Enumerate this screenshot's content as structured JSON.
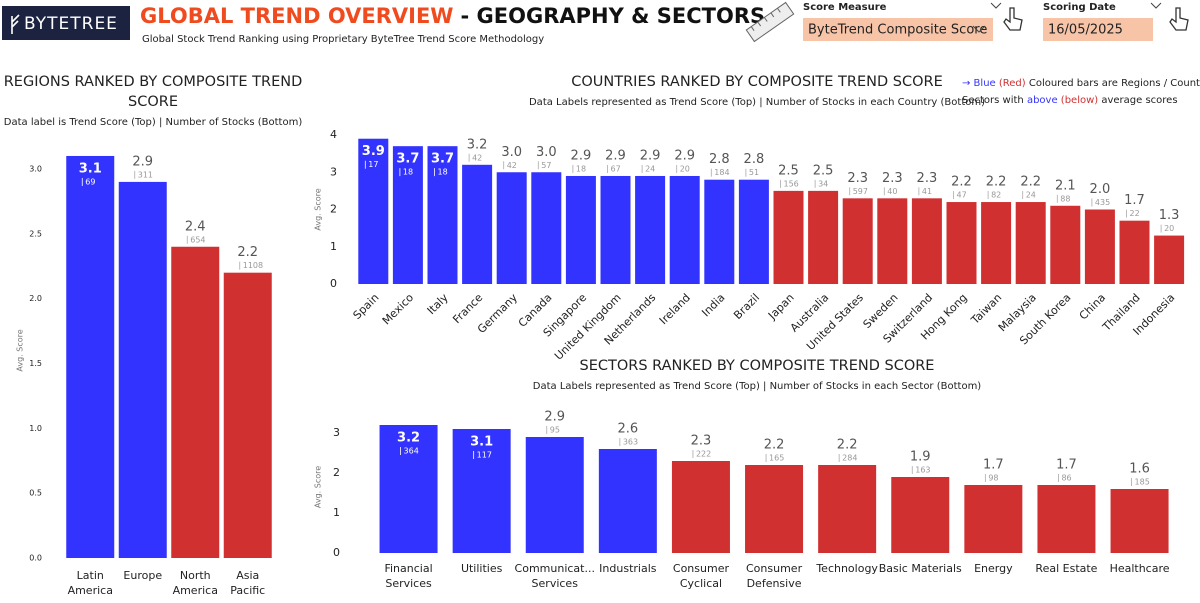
{
  "header": {
    "logo": "BYTETREE",
    "title": "GLOBAL TREND OVERVIEW",
    "title_suffix": "- GEOGRAPHY & SECTORS",
    "subtitle": "Global Stock Trend Ranking using Proprietary ByteTree Trend Score Methodology",
    "slicers": [
      {
        "label": "Score Measure",
        "value": "ByteTrend Composite Score"
      },
      {
        "label": "Scoring Date",
        "value": "16/05/2025"
      }
    ],
    "legend_note": [
      [
        {
          "text": "→ Blue",
          "color": "#3333ff"
        },
        {
          "text": " (Red)",
          "color": "#d03030"
        },
        {
          "text": " Coloured bars are Regions / Countries /",
          "color": "#222222"
        }
      ],
      [
        {
          "text": "Sectors with ",
          "color": "#222222"
        },
        {
          "text": "above",
          "color": "#3333ff"
        },
        {
          "text": " (below)",
          "color": "#d03030"
        },
        {
          "text": " average scores",
          "color": "#222222"
        }
      ]
    ]
  },
  "chart_data": [
    {
      "type": "bar",
      "title": [
        "REGIONS RANKED BY COMPOSITE TREND",
        "SCORE"
      ],
      "subtitle": "Data label is Trend Score (Top) | Number of Stocks (Bottom)",
      "y_label": "Avg. Score",
      "categories": [
        [
          "Latin",
          "America"
        ],
        [
          "Europe"
        ],
        [
          "North",
          "America"
        ],
        [
          "Asia",
          "Pacific"
        ]
      ],
      "values": [
        3.1,
        2.9,
        2.4,
        2.2
      ],
      "value_labels": [
        "3.1",
        "2.9",
        "2.4",
        "2.2"
      ],
      "stock_counts": [
        69,
        311,
        654,
        1108
      ],
      "colors": [
        "#3333ff",
        "#3333ff",
        "#d03030",
        "#d03030"
      ],
      "ylim": [
        0,
        3.2
      ],
      "yticks": [
        {
          "value": 0,
          "label": "0.0"
        },
        {
          "value": 0.5,
          "label": "0.5"
        },
        {
          "value": 1,
          "label": "1.0"
        },
        {
          "value": 1.5,
          "label": "1.5"
        },
        {
          "value": 2,
          "label": "2.0"
        },
        {
          "value": 2.5,
          "label": "2.5"
        },
        {
          "value": 3,
          "label": "3.0"
        }
      ]
    },
    {
      "type": "bar",
      "title": [
        "COUNTRIES RANKED BY COMPOSITE TREND SCORE"
      ],
      "subtitle": "Data Labels represented as Trend Score (Top) | Number of Stocks in each Country (Bottom)",
      "y_label": "Avg. Score",
      "categories": [
        "Spain",
        "Mexico",
        "Italy",
        "France",
        "Germany",
        "Canada",
        "Singapore",
        "United Kingdom",
        "Netherlands",
        "Ireland",
        "India",
        "Brazil",
        "Japan",
        "Australia",
        "United States",
        "Sweden",
        "Switzerland",
        "Hong Kong",
        "Taiwan",
        "Malaysia",
        "South Korea",
        "China",
        "Thailand",
        "Indonesia"
      ],
      "values": [
        3.9,
        3.7,
        3.7,
        3.2,
        3.0,
        3.0,
        2.9,
        2.9,
        2.9,
        2.9,
        2.8,
        2.8,
        2.5,
        2.5,
        2.3,
        2.3,
        2.3,
        2.2,
        2.2,
        2.2,
        2.1,
        2.0,
        1.7,
        1.3
      ],
      "value_labels": [
        "3.9",
        "3.7",
        "3.7",
        "3.2",
        "3.0",
        "3.0",
        "2.9",
        "2.9",
        "2.9",
        "2.9",
        "2.8",
        "2.8",
        "2.5",
        "2.5",
        "2.3",
        "2.3",
        "2.3",
        "2.2",
        "2.2",
        "2.2",
        "2.1",
        "2.0",
        "1.7",
        "1.3"
      ],
      "stock_counts": [
        17,
        18,
        18,
        42,
        42,
        57,
        18,
        67,
        24,
        20,
        184,
        51,
        156,
        34,
        597,
        40,
        41,
        47,
        82,
        24,
        88,
        435,
        22,
        20
      ],
      "colors": [
        "#3333ff",
        "#3333ff",
        "#3333ff",
        "#3333ff",
        "#3333ff",
        "#3333ff",
        "#3333ff",
        "#3333ff",
        "#3333ff",
        "#3333ff",
        "#3333ff",
        "#3333ff",
        "#d03030",
        "#d03030",
        "#d03030",
        "#d03030",
        "#d03030",
        "#d03030",
        "#d03030",
        "#d03030",
        "#d03030",
        "#d03030",
        "#d03030",
        "#d03030"
      ],
      "ylim": [
        0,
        4
      ],
      "yticks": [
        0,
        1,
        2,
        3,
        4
      ]
    },
    {
      "type": "bar",
      "title": [
        "SECTORS RANKED BY COMPOSITE TREND SCORE"
      ],
      "subtitle": "Data Labels represented as Trend Score (Top) | Number of Stocks in each Sector (Bottom)",
      "y_label": "Avg. Score",
      "categories": [
        [
          "Financial",
          "Services"
        ],
        [
          "Utilities"
        ],
        [
          "Communicat...",
          "Services"
        ],
        [
          "Industrials"
        ],
        [
          "Consumer",
          "Cyclical"
        ],
        [
          "Consumer",
          "Defensive"
        ],
        [
          "Technology"
        ],
        [
          "Basic Materials"
        ],
        [
          "Energy"
        ],
        [
          "Real Estate"
        ],
        [
          "Healthcare"
        ]
      ],
      "values": [
        3.2,
        3.1,
        2.9,
        2.6,
        2.3,
        2.2,
        2.2,
        1.9,
        1.7,
        1.7,
        1.6
      ],
      "value_labels": [
        "3.2",
        "3.1",
        "2.9",
        "2.6",
        "2.3",
        "2.2",
        "2.2",
        "1.9",
        "1.7",
        "1.7",
        "1.6"
      ],
      "stock_counts": [
        364,
        117,
        95,
        363,
        222,
        165,
        284,
        163,
        98,
        86,
        185
      ],
      "colors": [
        "#3333ff",
        "#3333ff",
        "#3333ff",
        "#3333ff",
        "#d03030",
        "#d03030",
        "#d03030",
        "#d03030",
        "#d03030",
        "#d03030",
        "#d03030"
      ],
      "ylim": [
        0,
        3.3
      ],
      "yticks": [
        0,
        1,
        2,
        3
      ]
    }
  ]
}
